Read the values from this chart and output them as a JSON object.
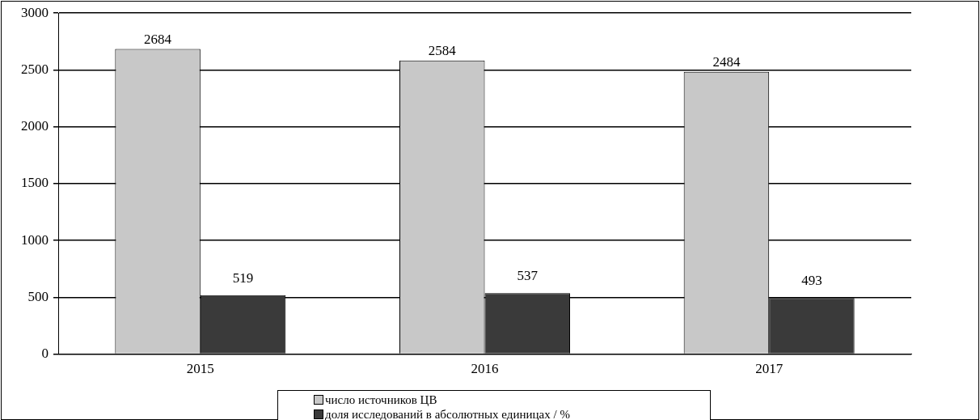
{
  "chart_data": {
    "type": "bar",
    "categories": [
      "2015",
      "2016",
      "2017"
    ],
    "series": [
      {
        "name": "число источников ЦВ",
        "color": "#c8c8c8",
        "values": [
          2684,
          2584,
          2484
        ]
      },
      {
        "name": "доля исследований в абсолютных единицах / %",
        "color": "#3a3a3a",
        "values": [
          519,
          537,
          493
        ]
      }
    ],
    "ylim": [
      0,
      3000
    ],
    "yticks": [
      0,
      500,
      1000,
      1500,
      2000,
      2500,
      3000
    ],
    "grid": "y",
    "legend": "bottom",
    "data_labels": true
  }
}
